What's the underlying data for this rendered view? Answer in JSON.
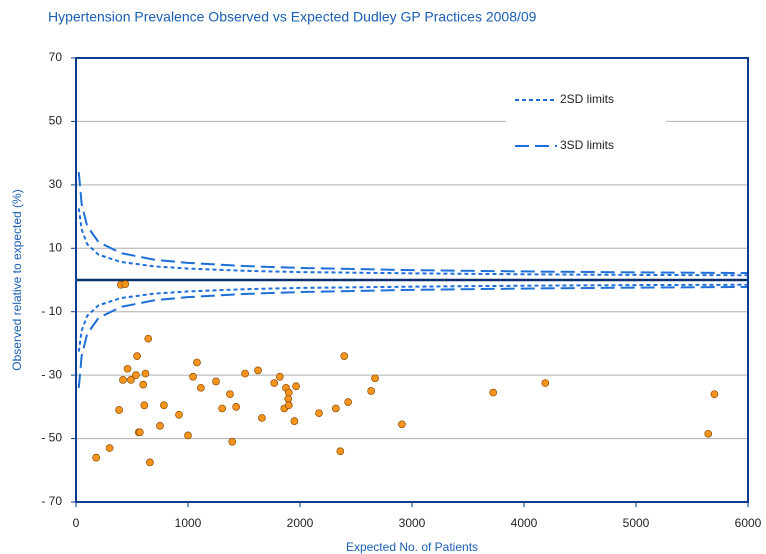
{
  "chart_data": {
    "type": "scatter",
    "title": "Hypertension Prevalence Observed vs Expected Dudley GP Practices 2008/09",
    "x_label": "Expected No. of Patients",
    "y_label": "Observed relative to expected (%)",
    "x": [
      400,
      440,
      180,
      300,
      385,
      420,
      460,
      490,
      545,
      535,
      560,
      570,
      600,
      620,
      610,
      645,
      660,
      750,
      785,
      920,
      1000,
      1045,
      1080,
      1115,
      1250,
      1305,
      1375,
      1395,
      1430,
      1510,
      1625,
      1660,
      1770,
      1820,
      1860,
      1875,
      1900,
      1895,
      1900,
      1950,
      1965,
      2170,
      2320,
      2360,
      2395,
      2430,
      2635,
      2670,
      2910,
      3725,
      4190,
      5645,
      5700
    ],
    "values": [
      -1.5,
      -1.3,
      -56,
      -53,
      -41,
      -31.5,
      -28,
      -31.5,
      -24,
      -30,
      -48,
      -48,
      -33,
      -29.5,
      -39.5,
      -18.5,
      -57.5,
      -46,
      -39.5,
      -42.5,
      -49,
      -30.5,
      -26,
      -34,
      -32,
      -40.5,
      -36,
      -51,
      -40,
      -29.5,
      -28.5,
      -43.5,
      -32.5,
      -30.5,
      -40.5,
      -34,
      -35.5,
      -37.5,
      -39.5,
      -44.5,
      -33.5,
      -42,
      -40.5,
      -54,
      -24,
      -38.5,
      -35,
      -31,
      -45.5,
      -35.5,
      -32.5,
      -48.5,
      -36
    ],
    "color": "#f7941d",
    "reference_line": 0,
    "limit_x": [
      25,
      50,
      100,
      200,
      400,
      700,
      1000,
      1500,
      2000,
      3000,
      4000,
      5000,
      6000
    ],
    "limits": [
      {
        "name": "2SD limits",
        "color": "#1e6fd9",
        "dash": "4 3",
        "upper": [
          22.6,
          16,
          11.3,
          8,
          5.7,
          4.3,
          3.6,
          2.9,
          2.5,
          2.1,
          1.8,
          1.6,
          1.5
        ],
        "lower": [
          -22.6,
          -16,
          -11.3,
          -8,
          -5.7,
          -4.3,
          -3.6,
          -2.9,
          -2.5,
          -2.1,
          -1.8,
          -1.6,
          -1.5
        ]
      },
      {
        "name": "3SD limits",
        "color": "#1e6fd9",
        "dash": "14 6",
        "upper": [
          34,
          24,
          17,
          12,
          8.5,
          6.4,
          5.4,
          4.4,
          3.8,
          3.1,
          2.7,
          2.4,
          2.2
        ],
        "lower": [
          -34,
          -24,
          -17,
          -12,
          -8.5,
          -6.4,
          -5.4,
          -4.4,
          -3.8,
          -3.1,
          -2.7,
          -2.4,
          -2.2
        ]
      }
    ],
    "xlim": [
      0,
      6000
    ],
    "xticks": [
      0,
      1000,
      2000,
      3000,
      4000,
      5000,
      6000
    ],
    "ylim": [
      -70,
      70
    ],
    "yticks": [
      70,
      50,
      30,
      10,
      {
        "value": -10,
        "label": "- 10"
      },
      {
        "value": -30,
        "label": "- 30"
      },
      {
        "value": -50,
        "label": "- 50"
      },
      {
        "value": -70,
        "label": "- 70"
      }
    ],
    "grid": true
  }
}
